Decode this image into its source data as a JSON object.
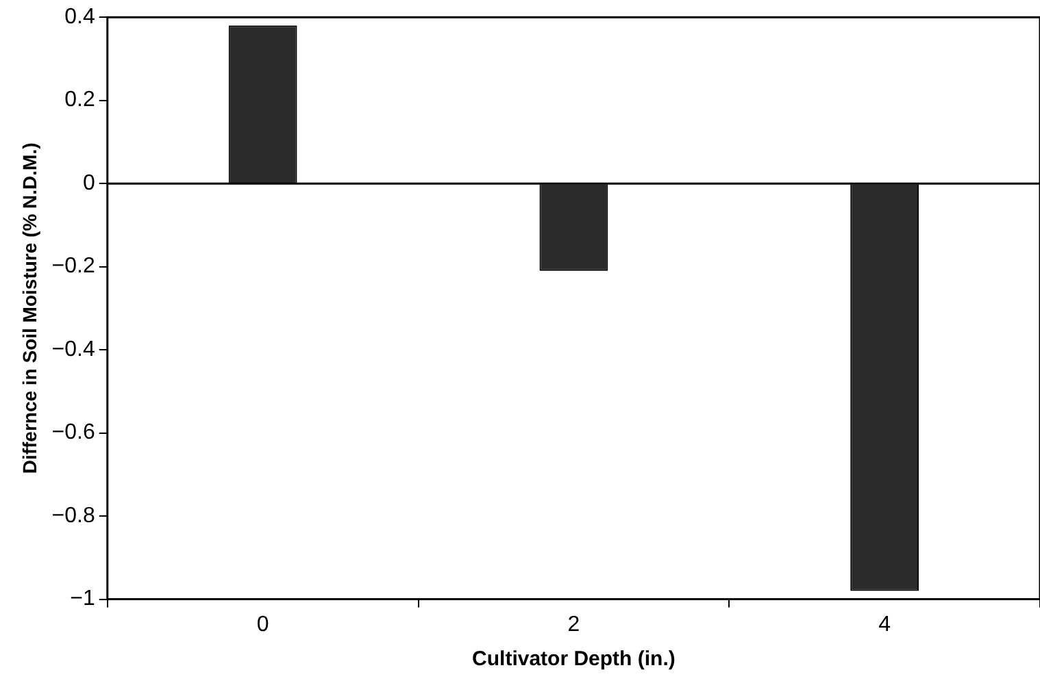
{
  "chart_data": {
    "type": "bar",
    "xlabel": "Cultivator Depth (in.)",
    "ylabel": "Differnce in Soil Moisture (% N.D.M.)",
    "categories": [
      "0",
      "2",
      "4"
    ],
    "values": [
      0.38,
      -0.21,
      -0.98
    ],
    "color": "#2b2b2b",
    "ylim": [
      -1,
      0.4
    ],
    "yticks": [
      {
        "value": -1,
        "label": "−1"
      },
      {
        "value": -0.8,
        "label": "−0.8"
      },
      {
        "value": -0.6,
        "label": "−0.6"
      },
      {
        "value": -0.4,
        "label": "−0.4"
      },
      {
        "value": -0.2,
        "label": "−0.2"
      },
      0,
      0.2,
      0.4
    ],
    "ref_lines": [
      {
        "axis": "y",
        "value": 0,
        "color": "#000000"
      }
    ],
    "grid": false,
    "legend": false
  }
}
